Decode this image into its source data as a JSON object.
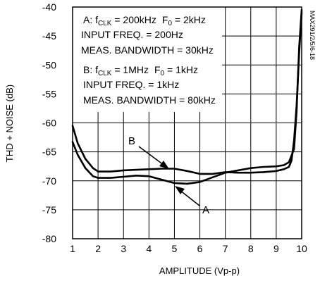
{
  "chart_data": {
    "type": "line",
    "ylabel": "THD + NOISE (dB)",
    "xlabel": "AMPLITUDE (Vp-p)",
    "xlim": [
      1,
      10
    ],
    "ylim": [
      -80,
      -40
    ],
    "x_ticks": [
      "1",
      "2",
      "3",
      "4",
      "5",
      "6",
      "7",
      "8",
      "9",
      "10"
    ],
    "y_ticks": [
      "-40",
      "-45",
      "-50",
      "-55",
      "-60",
      "-65",
      "-70",
      "-75",
      "-80"
    ],
    "grid": true,
    "side_code": "MAX291/2/5/6-18",
    "legend": {
      "a": {
        "clk_prefix": "A: f",
        "clk_sub": "CLK",
        "clk_value": " = 200kHz",
        "f0_prefix": "F",
        "f0_sub": "0",
        "f0_value": " = 2kHz",
        "input": "INPUT FREQ. = 200Hz",
        "bandwidth": "MEAS. BANDWIDTH = 30kHz"
      },
      "b": {
        "clk_prefix": "B: f",
        "clk_sub": "CLK",
        "clk_value": " = 1MHz",
        "f0_prefix": "F",
        "f0_sub": "0",
        "f0_value": " = 1kHz",
        "input": "INPUT FREQ. = 1kHz",
        "bandwidth": "MEAS. BANDWIDTH = 80kHz"
      }
    },
    "series": [
      {
        "name": "A",
        "x": [
          1.0,
          1.2,
          1.5,
          1.8,
          2.0,
          2.5,
          3.0,
          3.5,
          4.0,
          4.5,
          5.0,
          5.5,
          6.0,
          6.5,
          7.0,
          7.5,
          8.0,
          8.5,
          9.0,
          9.3,
          9.5,
          9.7,
          9.8,
          9.9,
          10.0
        ],
        "y": [
          -63.3,
          -65.5,
          -67.8,
          -69.2,
          -69.5,
          -69.5,
          -69.3,
          -69.1,
          -69.2,
          -69.8,
          -70.4,
          -70.5,
          -70.2,
          -69.4,
          -68.6,
          -68.2,
          -67.8,
          -67.6,
          -67.5,
          -67.3,
          -66.8,
          -64.5,
          -58.0,
          -47.0,
          -40.5
        ]
      },
      {
        "name": "B",
        "x": [
          1.0,
          1.2,
          1.5,
          1.8,
          2.0,
          2.5,
          3.0,
          3.5,
          4.0,
          4.5,
          5.0,
          5.5,
          6.0,
          6.5,
          7.0,
          7.5,
          8.0,
          8.5,
          9.0,
          9.3,
          9.5,
          9.6,
          9.7,
          9.8,
          9.9,
          10.0
        ],
        "y": [
          -60.5,
          -63.5,
          -66.2,
          -67.8,
          -68.4,
          -68.4,
          -68.2,
          -68.1,
          -68.0,
          -67.9,
          -67.9,
          -68.3,
          -68.8,
          -68.8,
          -68.5,
          -68.6,
          -68.6,
          -68.5,
          -68.3,
          -68.0,
          -67.6,
          -66.5,
          -63.0,
          -57.0,
          -48.0,
          -41.0
        ]
      }
    ],
    "annotations": [
      {
        "text": "B",
        "points_to": "B"
      },
      {
        "text": "A",
        "points_to": "A"
      }
    ]
  }
}
